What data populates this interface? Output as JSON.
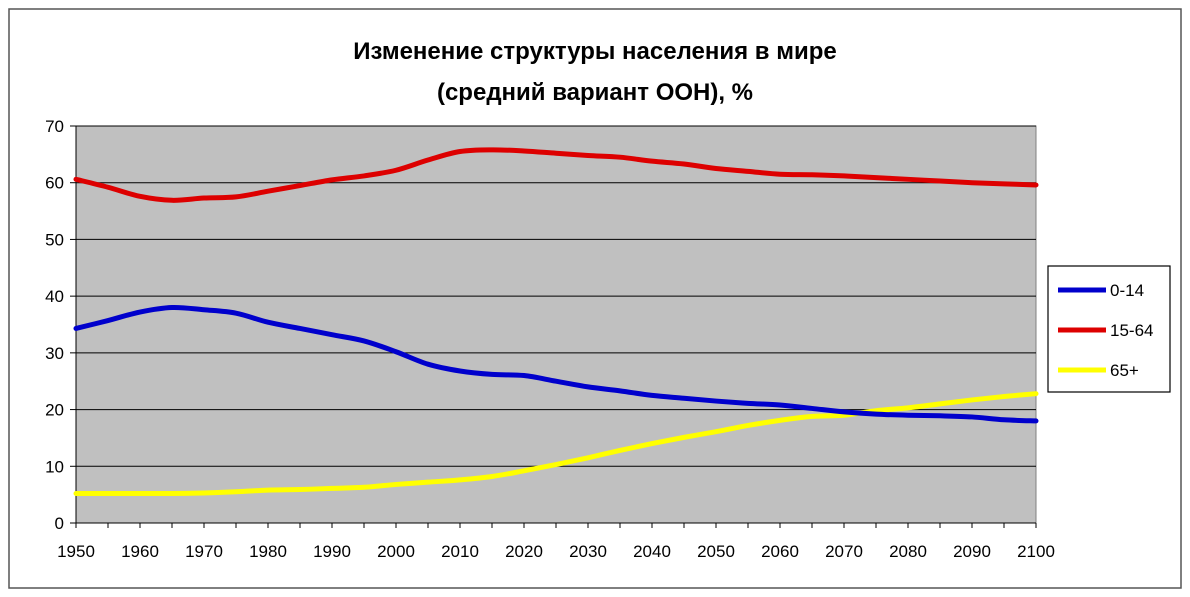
{
  "chart_data": {
    "type": "line",
    "title": "Изменение структуры населения в мире",
    "subtitle": "(средний вариант ООН), %",
    "xlabel": "",
    "ylabel": "",
    "xlim": [
      1950,
      2100
    ],
    "ylim": [
      0,
      70
    ],
    "y_ticks": [
      0,
      10,
      20,
      30,
      40,
      50,
      60,
      70
    ],
    "x_ticks": [
      1950,
      1960,
      1970,
      1980,
      1990,
      2000,
      2010,
      2020,
      2030,
      2040,
      2050,
      2060,
      2070,
      2080,
      2090,
      2100
    ],
    "grid": true,
    "legend_position": "right",
    "background_color": "#c0c0c0",
    "series": [
      {
        "name": "0-14",
        "color": "#0000cc",
        "x": [
          1950,
          1955,
          1960,
          1965,
          1970,
          1975,
          1980,
          1985,
          1990,
          1995,
          2000,
          2005,
          2010,
          2015,
          2020,
          2025,
          2030,
          2035,
          2040,
          2045,
          2050,
          2055,
          2060,
          2065,
          2070,
          2075,
          2080,
          2085,
          2090,
          2095,
          2100
        ],
        "values": [
          34.3,
          35.7,
          37.2,
          38.0,
          37.6,
          37.0,
          35.4,
          34.3,
          33.2,
          32.1,
          30.2,
          28.0,
          26.8,
          26.2,
          26.0,
          25.0,
          24.0,
          23.3,
          22.5,
          22.0,
          21.5,
          21.1,
          20.8,
          20.2,
          19.6,
          19.2,
          19.0,
          18.9,
          18.7,
          18.2,
          18.0
        ]
      },
      {
        "name": "15-64",
        "color": "#dd0000",
        "x": [
          1950,
          1955,
          1960,
          1965,
          1970,
          1975,
          1980,
          1985,
          1990,
          1995,
          2000,
          2005,
          2010,
          2015,
          2020,
          2025,
          2030,
          2035,
          2040,
          2045,
          2050,
          2055,
          2060,
          2065,
          2070,
          2075,
          2080,
          2085,
          2090,
          2095,
          2100
        ],
        "values": [
          60.6,
          59.2,
          57.6,
          56.9,
          57.3,
          57.5,
          58.5,
          59.5,
          60.5,
          61.2,
          62.2,
          64.0,
          65.5,
          65.8,
          65.6,
          65.2,
          64.8,
          64.5,
          63.8,
          63.3,
          62.5,
          62.0,
          61.5,
          61.4,
          61.2,
          60.9,
          60.6,
          60.3,
          60.0,
          59.8,
          59.6
        ]
      },
      {
        "name": "65+",
        "color": "#ffff00",
        "x": [
          1950,
          1955,
          1960,
          1965,
          1970,
          1975,
          1980,
          1985,
          1990,
          1995,
          2000,
          2005,
          2010,
          2015,
          2020,
          2025,
          2030,
          2035,
          2040,
          2045,
          2050,
          2055,
          2060,
          2065,
          2070,
          2075,
          2080,
          2085,
          2090,
          2095,
          2100
        ],
        "values": [
          5.2,
          5.2,
          5.2,
          5.2,
          5.3,
          5.5,
          5.8,
          5.9,
          6.1,
          6.3,
          6.8,
          7.2,
          7.6,
          8.2,
          9.2,
          10.3,
          11.5,
          12.8,
          14.0,
          15.1,
          16.1,
          17.2,
          18.1,
          18.8,
          19.0,
          19.8,
          20.3,
          21.0,
          21.7,
          22.3,
          22.8
        ]
      }
    ]
  }
}
